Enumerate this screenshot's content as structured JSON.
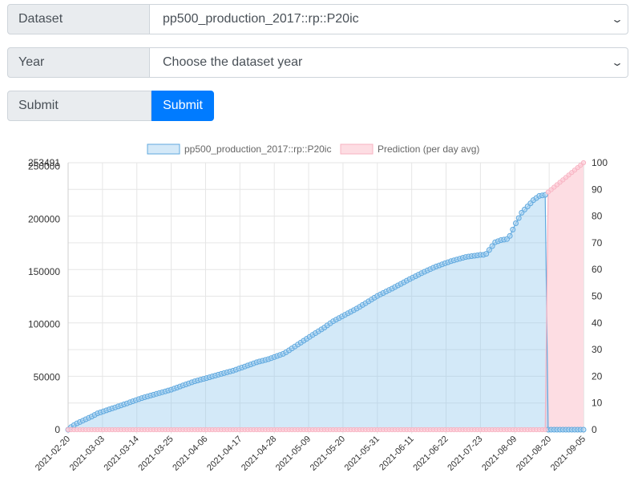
{
  "form": {
    "dataset_label": "Dataset",
    "dataset_value": "pp500_production_2017::rp::P20ic",
    "year_label": "Year",
    "year_value": "Choose the dataset year",
    "submit_label": "Submit",
    "submit_button": "Submit"
  },
  "chart_data": {
    "type": "line",
    "title": "",
    "legend": [
      {
        "name": "pp500_production_2017::rp::P20ic",
        "fill": "#d4e9f8",
        "stroke": "#5fa8de"
      },
      {
        "name": "Prediction (per day avg)",
        "fill": "#fddde3",
        "stroke": "#f7b3c2"
      }
    ],
    "legend_position": "top",
    "x_ticks": [
      "2021-02-20",
      "2021-03-03",
      "2021-03-14",
      "2021-03-25",
      "2021-04-06",
      "2021-04-17",
      "2021-04-28",
      "2021-05-09",
      "2021-05-20",
      "2021-05-31",
      "2021-06-11",
      "2021-06-22",
      "2021-07-23",
      "2021-08-09",
      "2021-08-20",
      "2021-09-05"
    ],
    "y_left_ticks": [
      "0",
      "50000",
      "100000",
      "150000",
      "200000",
      "250000",
      "253491"
    ],
    "y_left_range": [
      0,
      253491
    ],
    "y_right_ticks": [
      "0",
      "10",
      "20",
      "30",
      "40",
      "50",
      "60",
      "70",
      "80",
      "90",
      "100"
    ],
    "y_right_range": [
      0,
      100
    ],
    "grid": true,
    "series": [
      {
        "name": "pp500_production_2017::rp::P20ic",
        "axis": "left",
        "x_range_index": [
          0,
          135
        ],
        "anchors": [
          [
            0,
            0
          ],
          [
            1,
            2500
          ],
          [
            3,
            6000
          ],
          [
            8,
            12500
          ],
          [
            10,
            15500
          ],
          [
            20,
            25000
          ],
          [
            25,
            30000
          ],
          [
            35,
            38000
          ],
          [
            43,
            46000
          ],
          [
            47,
            49000
          ],
          [
            52,
            53000
          ],
          [
            56,
            56000
          ],
          [
            62,
            62000
          ],
          [
            64,
            64000
          ],
          [
            68,
            67000
          ],
          [
            70,
            69000
          ],
          [
            72,
            71000
          ],
          [
            73,
            72000
          ],
          [
            74,
            73500
          ],
          [
            77,
            79000
          ],
          [
            83,
            90000
          ],
          [
            87,
            97000
          ],
          [
            90,
            103000
          ],
          [
            98,
            115000
          ],
          [
            105,
            127000
          ],
          [
            110,
            134000
          ],
          [
            116,
            143000
          ],
          [
            121,
            150000
          ],
          [
            125,
            155000
          ],
          [
            130,
            160000
          ],
          [
            135,
            164000
          ],
          [
            140,
            166000
          ],
          [
            141,
            166000
          ],
          [
            142,
            167000
          ],
          [
            145,
            178000
          ],
          [
            147,
            180000
          ],
          [
            149,
            181000
          ],
          [
            150,
            184000
          ],
          [
            151,
            190000
          ],
          [
            152,
            196000
          ],
          [
            154,
            206000
          ],
          [
            156,
            212000
          ],
          [
            158,
            218000
          ],
          [
            160,
            222000
          ],
          [
            162,
            223000
          ]
        ],
        "drop_index": 163,
        "after_drop": 0,
        "end_index": 175,
        "color": "#5fa8de"
      },
      {
        "name": "Prediction (per day avg)",
        "axis": "right",
        "points": [
          [
            0,
            0
          ],
          [
            162,
            0
          ],
          [
            163,
            89
          ],
          [
            175,
            100
          ]
        ],
        "color": "#f7b3c2"
      }
    ]
  }
}
